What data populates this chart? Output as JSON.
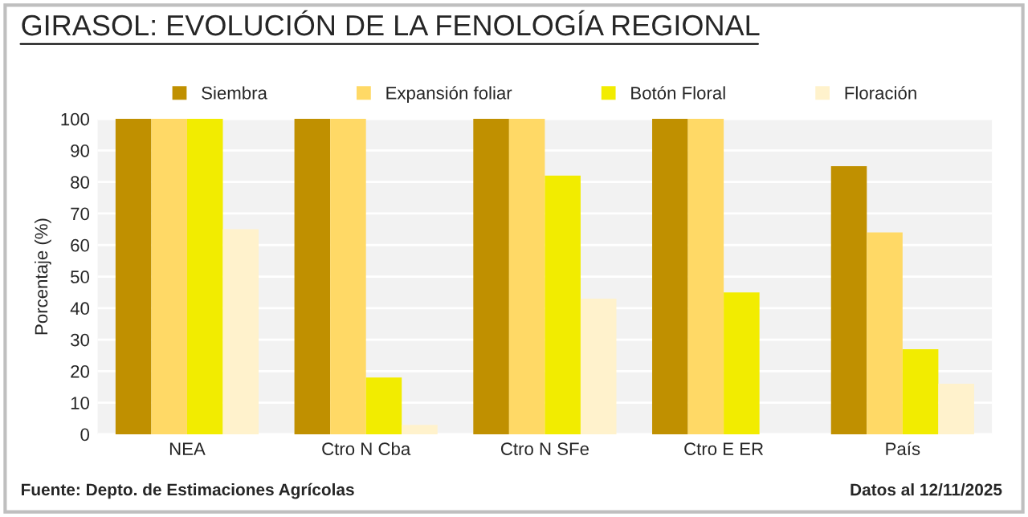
{
  "chart_data": {
    "type": "bar",
    "title": "GIRASOL: EVOLUCIÓN DE LA FENOLOGÍA REGIONAL",
    "ylabel": "Porcentaje (%)",
    "categories": [
      "NEA",
      "Ctro N Cba",
      "Ctro N SFe",
      "Ctro E ER",
      "País"
    ],
    "series": [
      {
        "name": "Siembra",
        "color": "#c09000",
        "values": [
          100,
          100,
          100,
          100,
          85
        ]
      },
      {
        "name": "Expansión foliar",
        "color": "#ffd966",
        "values": [
          100,
          100,
          100,
          100,
          64
        ]
      },
      {
        "name": "Botón Floral",
        "color": "#f2ec00",
        "values": [
          100,
          18,
          82,
          45,
          27
        ]
      },
      {
        "name": "Floración",
        "color": "#fff2cc",
        "values": [
          65,
          3,
          43,
          null,
          16
        ]
      }
    ],
    "ylim": [
      0,
      100
    ],
    "yticks": [
      0,
      10,
      20,
      30,
      40,
      50,
      60,
      70,
      80,
      90,
      100
    ],
    "grid": "y",
    "legend": "top",
    "annotations": [
      "Fuente: Depto. de Estimaciones Agrícolas",
      "Datos al 12/11/2025"
    ]
  }
}
